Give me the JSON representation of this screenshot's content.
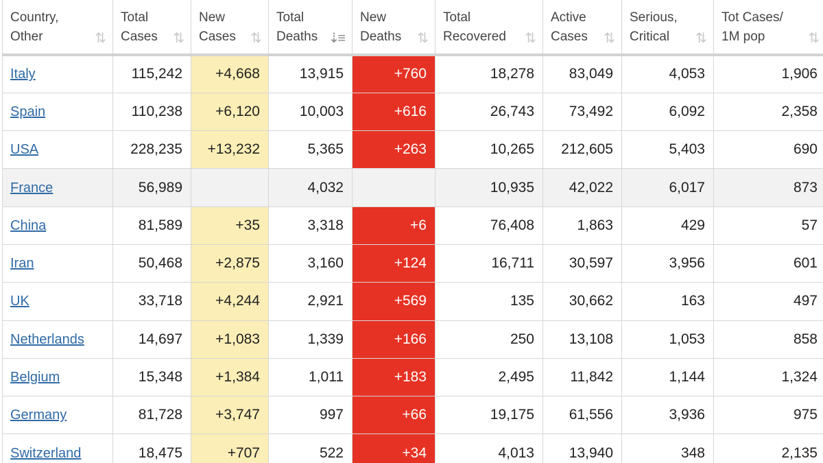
{
  "headers": [
    {
      "line1": "Country,",
      "line2": "Other",
      "sort": "⇅",
      "active": false
    },
    {
      "line1": "Total",
      "line2": "Cases",
      "sort": "⇅",
      "active": false
    },
    {
      "line1": "New",
      "line2": "Cases",
      "sort": "⇅",
      "active": false
    },
    {
      "line1": "Total",
      "line2": "Deaths",
      "sort": "⇣≡",
      "active": true
    },
    {
      "line1": "New",
      "line2": "Deaths",
      "sort": "⇅",
      "active": false
    },
    {
      "line1": "Total",
      "line2": "Recovered",
      "sort": "⇅",
      "active": false
    },
    {
      "line1": "Active",
      "line2": "Cases",
      "sort": "⇅",
      "active": false
    },
    {
      "line1": "Serious,",
      "line2": "Critical",
      "sort": "⇅",
      "active": false
    },
    {
      "line1": "Tot Cases/",
      "line2": "1M pop",
      "sort": "⇅",
      "active": false
    }
  ],
  "colors": {
    "new_cases_bg": "#fbeeb6",
    "new_deaths_bg": "#e63224",
    "link": "#2f6aa6",
    "row_highlight": "#f2f2f2"
  },
  "rows": [
    {
      "country": "Italy",
      "total_cases": "115,242",
      "new_cases": "+4,668",
      "total_deaths": "13,915",
      "new_deaths": "+760",
      "total_recovered": "18,278",
      "active_cases": "83,049",
      "serious_critical": "4,053",
      "tot_cases_1m": "1,906"
    },
    {
      "country": "Spain",
      "total_cases": "110,238",
      "new_cases": "+6,120",
      "total_deaths": "10,003",
      "new_deaths": "+616",
      "total_recovered": "26,743",
      "active_cases": "73,492",
      "serious_critical": "6,092",
      "tot_cases_1m": "2,358"
    },
    {
      "country": "USA",
      "total_cases": "228,235",
      "new_cases": "+13,232",
      "total_deaths": "5,365",
      "new_deaths": "+263",
      "total_recovered": "10,265",
      "active_cases": "212,605",
      "serious_critical": "5,403",
      "tot_cases_1m": "690"
    },
    {
      "country": "France",
      "total_cases": "56,989",
      "new_cases": "",
      "total_deaths": "4,032",
      "new_deaths": "",
      "total_recovered": "10,935",
      "active_cases": "42,022",
      "serious_critical": "6,017",
      "tot_cases_1m": "873",
      "highlight": true
    },
    {
      "country": "China",
      "total_cases": "81,589",
      "new_cases": "+35",
      "total_deaths": "3,318",
      "new_deaths": "+6",
      "total_recovered": "76,408",
      "active_cases": "1,863",
      "serious_critical": "429",
      "tot_cases_1m": "57"
    },
    {
      "country": "Iran",
      "total_cases": "50,468",
      "new_cases": "+2,875",
      "total_deaths": "3,160",
      "new_deaths": "+124",
      "total_recovered": "16,711",
      "active_cases": "30,597",
      "serious_critical": "3,956",
      "tot_cases_1m": "601"
    },
    {
      "country": "UK",
      "total_cases": "33,718",
      "new_cases": "+4,244",
      "total_deaths": "2,921",
      "new_deaths": "+569",
      "total_recovered": "135",
      "active_cases": "30,662",
      "serious_critical": "163",
      "tot_cases_1m": "497"
    },
    {
      "country": "Netherlands",
      "total_cases": "14,697",
      "new_cases": "+1,083",
      "total_deaths": "1,339",
      "new_deaths": "+166",
      "total_recovered": "250",
      "active_cases": "13,108",
      "serious_critical": "1,053",
      "tot_cases_1m": "858"
    },
    {
      "country": "Belgium",
      "total_cases": "15,348",
      "new_cases": "+1,384",
      "total_deaths": "1,011",
      "new_deaths": "+183",
      "total_recovered": "2,495",
      "active_cases": "11,842",
      "serious_critical": "1,144",
      "tot_cases_1m": "1,324"
    },
    {
      "country": "Germany",
      "total_cases": "81,728",
      "new_cases": "+3,747",
      "total_deaths": "997",
      "new_deaths": "+66",
      "total_recovered": "19,175",
      "active_cases": "61,556",
      "serious_critical": "3,936",
      "tot_cases_1m": "975"
    },
    {
      "country": "Switzerland",
      "total_cases": "18,475",
      "new_cases": "+707",
      "total_deaths": "522",
      "new_deaths": "+34",
      "total_recovered": "4,013",
      "active_cases": "13,940",
      "serious_critical": "348",
      "tot_cases_1m": "2,135"
    }
  ]
}
